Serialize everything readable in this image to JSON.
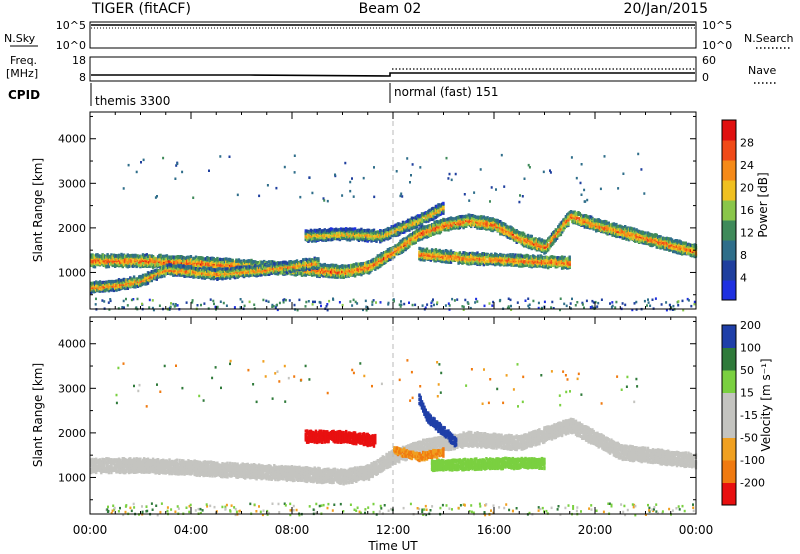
{
  "header": {
    "radar": "TIGER (fitACF)",
    "beam": "Beam 02",
    "date": "20/Jan/2015"
  },
  "strips": {
    "nsky": {
      "label": "N.Sky",
      "ticks": [
        "10^5",
        "10^0"
      ],
      "right_label": "N.Search",
      "right_ticks": [
        "10^5",
        "10^0"
      ]
    },
    "freq": {
      "label_1": "Freq.",
      "label_2": "[MHz]",
      "ticks": [
        "18",
        "8"
      ],
      "right_label": "Nave",
      "right_ticks": [
        "60",
        "0"
      ]
    },
    "cpid": {
      "label": "CPID",
      "modes": [
        "themis 3300",
        "normal (fast) 151"
      ]
    }
  },
  "chart_data": [
    {
      "type": "heatmap",
      "ylabel": "Slant Range [km]",
      "xlabel": "",
      "ylim": [
        180,
        4600
      ],
      "x_ticks": [
        0,
        4,
        8,
        12,
        16,
        20,
        24
      ],
      "y_ticks": [
        1000,
        2000,
        3000,
        4000
      ],
      "colorbar": {
        "label": "Power [dB]",
        "ticks": [
          "4",
          "8",
          "12",
          "16",
          "20",
          "24",
          "28"
        ],
        "range": [
          0,
          30
        ]
      },
      "bands": [
        {
          "name": "",
          "points": [
            [
              0,
              1300
            ],
            [
              2,
              1300
            ],
            [
              4,
              1250
            ],
            [
              6,
              1180
            ],
            [
              8,
              1120
            ],
            [
              10,
              1050
            ],
            [
              11,
              1150
            ],
            [
              12,
              1500
            ],
            [
              13,
              1900
            ],
            [
              14,
              2100
            ],
            [
              15,
              2200
            ],
            [
              16,
              2100
            ],
            [
              17,
              1800
            ],
            [
              18,
              1600
            ],
            [
              19,
              2300
            ],
            [
              20,
              2100
            ],
            [
              22,
              1800
            ],
            [
              24,
              1500
            ]
          ],
          "width": 240,
          "level": 18
        },
        {
          "name": "",
          "points": [
            [
              0,
              700
            ],
            [
              1,
              750
            ],
            [
              2,
              850
            ],
            [
              3,
              1100
            ],
            [
              5,
              1000
            ],
            [
              7,
              1100
            ],
            [
              9,
              1250
            ]
          ],
          "width": 200,
          "level": 16
        },
        {
          "name": "",
          "points": [
            [
              8.5,
              1850
            ],
            [
              10,
              1900
            ],
            [
              11.5,
              1850
            ],
            [
              13,
              2200
            ],
            [
              14,
              2500
            ]
          ],
          "width": 220,
          "level": 14
        },
        {
          "name": "",
          "points": [
            [
              13,
              1450
            ],
            [
              15,
              1350
            ],
            [
              17,
              1300
            ],
            [
              19,
              1250
            ]
          ],
          "width": 220,
          "level": 18
        }
      ]
    },
    {
      "type": "heatmap",
      "ylabel": "Slant Range [km]",
      "xlabel": "Time UT",
      "ylim": [
        180,
        4600
      ],
      "x_ticks": [
        0,
        4,
        8,
        12,
        16,
        20,
        24
      ],
      "x_tick_labels": [
        "00:00",
        "04:00",
        "08:00",
        "12:00",
        "16:00",
        "20:00",
        "00:00"
      ],
      "y_ticks": [
        1000,
        2000,
        3000,
        4000
      ],
      "colorbar": {
        "label": "Velocity [m s⁻¹]",
        "ticks": [
          "-200",
          "-100",
          "-50",
          "-15",
          "15",
          "50",
          "100",
          "200"
        ]
      },
      "bands": [
        {
          "name": "",
          "points": [
            [
              0,
              1300
            ],
            [
              2,
              1300
            ],
            [
              4,
              1250
            ],
            [
              6,
              1180
            ],
            [
              8,
              1120
            ],
            [
              10,
              1050
            ],
            [
              11,
              1150
            ],
            [
              12,
              1500
            ],
            [
              13,
              1700
            ],
            [
              15,
              1900
            ],
            [
              17,
              1800
            ],
            [
              19,
              2200
            ],
            [
              21,
              1600
            ],
            [
              24,
              1400
            ]
          ],
          "width": 280,
          "velocity": 0
        },
        {
          "name": "",
          "points": [
            [
              8.5,
              1950
            ],
            [
              10,
              1950
            ],
            [
              11.3,
              1850
            ]
          ],
          "width": 220,
          "velocity": -220
        },
        {
          "name": "",
          "points": [
            [
              13.5,
              1300
            ],
            [
              16,
              1350
            ],
            [
              18,
              1350
            ]
          ],
          "width": 200,
          "velocity": 30
        },
        {
          "name": "",
          "points": [
            [
              13,
              2800
            ],
            [
              13.3,
              2400
            ],
            [
              14.5,
              1800
            ]
          ],
          "width": 180,
          "velocity": 220
        },
        {
          "name": "",
          "points": [
            [
              12,
              1650
            ],
            [
              13,
              1500
            ],
            [
              14,
              1600
            ]
          ],
          "width": 140,
          "velocity": -60
        }
      ]
    }
  ]
}
